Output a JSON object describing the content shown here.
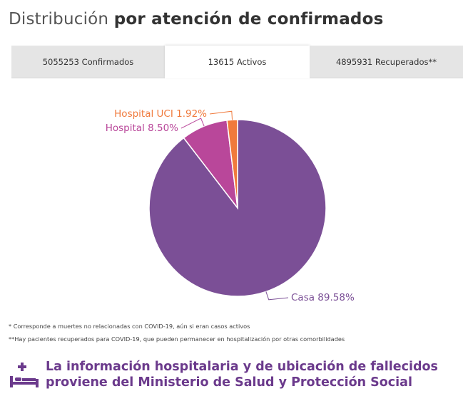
{
  "title": {
    "light": "Distribución",
    "bold": "por atención de confirmados"
  },
  "tabs": [
    {
      "label": "5055253 Confirmados",
      "active": false
    },
    {
      "label": "13615 Activos",
      "active": true
    },
    {
      "label": "4895931 Recuperados**",
      "active": false
    }
  ],
  "chart_data": {
    "type": "pie",
    "slices": [
      {
        "label": "Casa 89.58%",
        "value": 89.58,
        "color": "#7b4f96"
      },
      {
        "label": "Hospital UCI 1.92%",
        "value": 1.92,
        "color": "#f07a3c"
      },
      {
        "label": "Hospital 8.50%",
        "value": 8.5,
        "color": "#b9479a"
      }
    ]
  },
  "notes": [
    "* Corresponde a muertes no relacionadas con COVID-19, aún si eran casos activos",
    "**Hay pacientes recuperados para COVID-19, que pueden permanecer en hospitalización por otras comorbilidades"
  ],
  "footer": {
    "icon": "hospital-bed-icon",
    "line1": "La información hospitalaria y de ubicación de fallecidos",
    "line2": "proviene del Ministerio de Salud y Protección Social",
    "color": "#6b3a8c"
  }
}
